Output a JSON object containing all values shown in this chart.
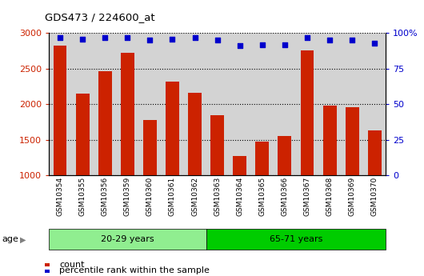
{
  "title": "GDS473 / 224600_at",
  "samples": [
    "GSM10354",
    "GSM10355",
    "GSM10356",
    "GSM10359",
    "GSM10360",
    "GSM10361",
    "GSM10362",
    "GSM10363",
    "GSM10364",
    "GSM10365",
    "GSM10366",
    "GSM10367",
    "GSM10368",
    "GSM10369",
    "GSM10370"
  ],
  "counts": [
    2830,
    2150,
    2460,
    2720,
    1780,
    2320,
    2160,
    1840,
    1270,
    1470,
    1550,
    2760,
    1980,
    1960,
    1630
  ],
  "percentile_ranks": [
    97,
    96,
    97,
    97,
    95,
    96,
    97,
    95,
    91,
    92,
    92,
    97,
    95,
    95,
    93
  ],
  "groups": [
    {
      "label": "20-29 years",
      "start": 0,
      "end": 7,
      "color": "#90EE90"
    },
    {
      "label": "65-71 years",
      "start": 7,
      "end": 15,
      "color": "#00CC00"
    }
  ],
  "ylim_left": [
    1000,
    3000
  ],
  "ylim_right": [
    0,
    100
  ],
  "yticks_left": [
    1000,
    1500,
    2000,
    2500,
    3000
  ],
  "yticks_right": [
    0,
    25,
    50,
    75,
    100
  ],
  "bar_color": "#CC2200",
  "dot_color": "#0000CC",
  "bg_color": "#D3D3D3",
  "left_tick_color": "#CC2200",
  "right_tick_color": "#0000CC",
  "grid_color": "#000000"
}
